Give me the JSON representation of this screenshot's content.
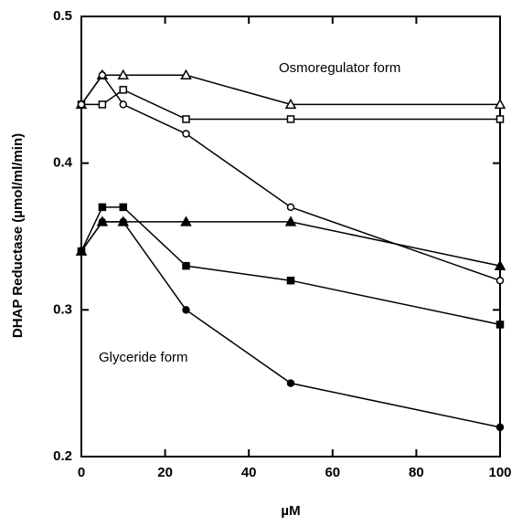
{
  "chart_data": {
    "type": "line",
    "x_label": "µM",
    "y_label": "DHAP Reductase (µmol/ml/min)",
    "annotations": [
      "Osmoregulator form",
      "Glyceride form"
    ],
    "x": [
      0,
      5,
      10,
      25,
      50,
      100
    ],
    "series": [
      {
        "marker": "triangle",
        "filled": false,
        "color": "#000000",
        "values": [
          0.44,
          0.46,
          0.46,
          0.46,
          0.44,
          0.44
        ]
      },
      {
        "marker": "square",
        "filled": false,
        "color": "#000000",
        "values": [
          0.44,
          0.44,
          0.45,
          0.43,
          0.43,
          0.43
        ]
      },
      {
        "marker": "circle",
        "filled": false,
        "color": "#000000",
        "values": [
          0.44,
          0.46,
          0.44,
          0.42,
          0.37,
          0.32
        ]
      },
      {
        "marker": "triangle",
        "filled": true,
        "color": "#000000",
        "values": [
          0.34,
          0.36,
          0.36,
          0.36,
          0.36,
          0.33
        ]
      },
      {
        "marker": "square",
        "filled": true,
        "color": "#000000",
        "values": [
          0.34,
          0.37,
          0.37,
          0.33,
          0.32,
          0.29
        ]
      },
      {
        "marker": "circle",
        "filled": true,
        "color": "#000000",
        "values": [
          0.34,
          0.36,
          0.36,
          0.3,
          0.25,
          0.22
        ]
      }
    ],
    "xlim": [
      0,
      100
    ],
    "xticks": [
      0,
      20,
      40,
      60,
      80,
      100
    ],
    "ylim": [
      0.2,
      0.5
    ],
    "yticks": [
      0.2,
      0.3,
      0.4,
      0.5
    ],
    "grid": false
  }
}
